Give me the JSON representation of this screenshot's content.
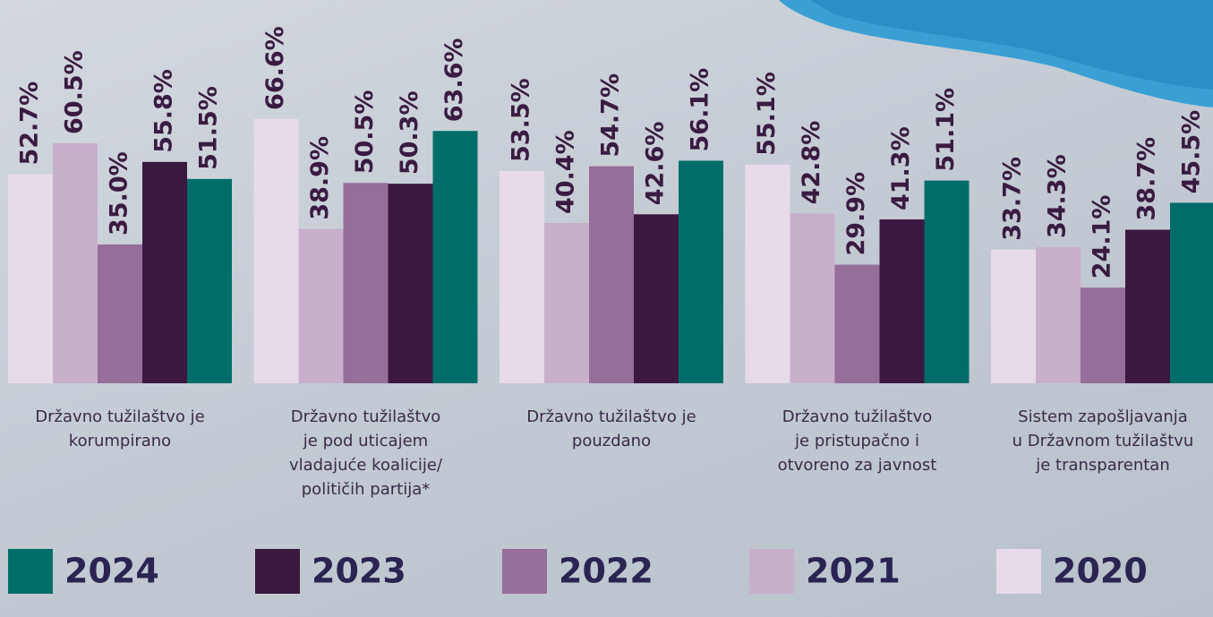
{
  "chart_data": {
    "type": "bar",
    "categories": [
      "Državno tužilaštvo je\nkorumpirano",
      "Državno tužilaštvo\nje pod uticajem\nvladajuće koalicije/\npolitičih partija*",
      "Državno tužilaštvo je\npouzdano",
      "Državno tužilaštvo\nje pristupačno i\notvoreno za javnost",
      "Sistem zapošljavanja\nu Državnom tužilaštvu\nje transparentan"
    ],
    "series": [
      {
        "name": "2020",
        "color": "#e8dbe9",
        "values": [
          52.7,
          66.6,
          53.5,
          55.1,
          33.7
        ],
        "value_labels": [
          "52.7%",
          "66.6%",
          "53.5%",
          "55.1%",
          "33.7%"
        ]
      },
      {
        "name": "2021",
        "color": "#c8afcc",
        "values": [
          60.5,
          38.9,
          40.4,
          42.8,
          34.3
        ],
        "value_labels": [
          "60.5%",
          "38.9%",
          "40.4%",
          "42.8%",
          "34.3%"
        ]
      },
      {
        "name": "2022",
        "color": "#956e99",
        "values": [
          35.0,
          50.5,
          54.7,
          29.9,
          24.1
        ],
        "value_labels": [
          "35.0%",
          "50.5%",
          "54.7%",
          "29.9%",
          "24.1%"
        ]
      },
      {
        "name": "2023",
        "color": "#3b1840",
        "values": [
          55.8,
          50.3,
          42.6,
          41.3,
          38.7
        ],
        "value_labels": [
          "55.8%",
          "50.3%",
          "42.6%",
          "41.3%",
          "38.7%"
        ]
      },
      {
        "name": "2024",
        "color": "#006d69",
        "values": [
          51.5,
          63.6,
          56.1,
          51.1,
          45.5
        ],
        "value_labels": [
          "51.5%",
          "63.6%",
          "56.1%",
          "51.1%",
          "45.5%"
        ]
      }
    ],
    "ylim": [
      0,
      100
    ]
  }
}
